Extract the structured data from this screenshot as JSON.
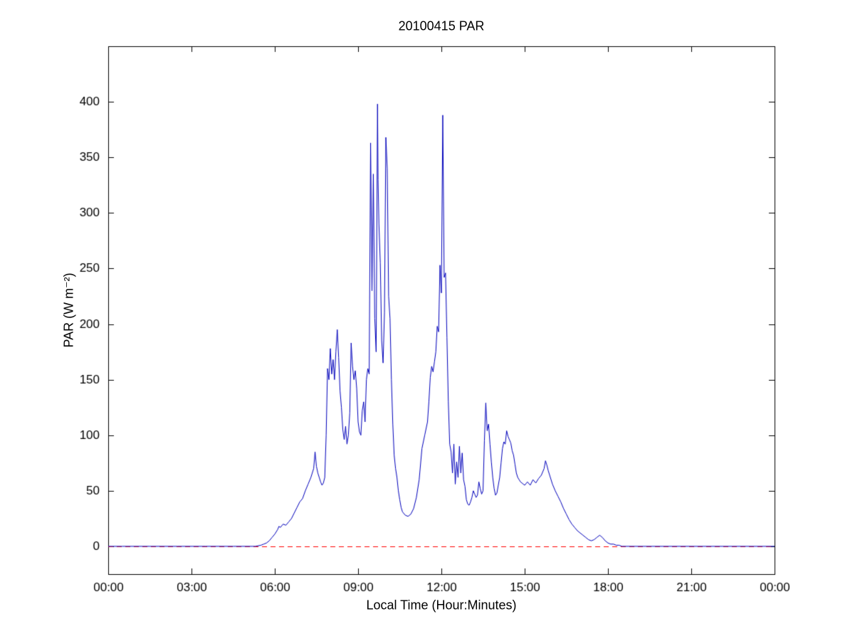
{
  "chart_data": {
    "type": "line",
    "title": "20100415 PAR",
    "xlabel": "Local Time (Hour:Minutes)",
    "ylabel": "PAR (W m⁻²)",
    "xlim": [
      0,
      24
    ],
    "ylim": [
      -25,
      450
    ],
    "xticks": [
      0,
      3,
      6,
      9,
      12,
      15,
      18,
      21,
      24
    ],
    "xtick_labels": [
      "00:00",
      "03:00",
      "06:00",
      "09:00",
      "12:00",
      "15:00",
      "18:00",
      "21:00",
      "00:00"
    ],
    "yticks": [
      0,
      50,
      100,
      150,
      200,
      250,
      300,
      350,
      400
    ],
    "ytick_labels": [
      "0",
      "50",
      "100",
      "150",
      "200",
      "250",
      "300",
      "350",
      "400"
    ],
    "grid": false,
    "legend_position": "none",
    "background_color": "#ffffff",
    "axis_color": "#000000",
    "series": [
      {
        "name": "PAR",
        "color": "#0000bb",
        "points": [
          [
            0.0,
            0
          ],
          [
            0.5,
            0
          ],
          [
            1.0,
            0
          ],
          [
            1.5,
            0
          ],
          [
            2.0,
            0
          ],
          [
            2.5,
            0
          ],
          [
            3.0,
            0
          ],
          [
            3.5,
            0
          ],
          [
            4.0,
            0
          ],
          [
            4.5,
            0
          ],
          [
            5.0,
            0
          ],
          [
            5.3,
            0
          ],
          [
            5.5,
            1
          ],
          [
            5.6,
            2
          ],
          [
            5.7,
            3
          ],
          [
            5.8,
            5
          ],
          [
            5.9,
            8
          ],
          [
            6.0,
            11
          ],
          [
            6.1,
            15
          ],
          [
            6.15,
            18
          ],
          [
            6.2,
            17
          ],
          [
            6.3,
            20
          ],
          [
            6.4,
            19
          ],
          [
            6.5,
            22
          ],
          [
            6.6,
            25
          ],
          [
            6.7,
            30
          ],
          [
            6.8,
            35
          ],
          [
            6.9,
            40
          ],
          [
            7.0,
            43
          ],
          [
            7.1,
            50
          ],
          [
            7.2,
            56
          ],
          [
            7.3,
            62
          ],
          [
            7.4,
            70
          ],
          [
            7.45,
            85
          ],
          [
            7.5,
            72
          ],
          [
            7.55,
            66
          ],
          [
            7.6,
            62
          ],
          [
            7.65,
            58
          ],
          [
            7.7,
            55
          ],
          [
            7.75,
            57
          ],
          [
            7.8,
            62
          ],
          [
            7.85,
            100
          ],
          [
            7.9,
            160
          ],
          [
            7.95,
            150
          ],
          [
            8.0,
            178
          ],
          [
            8.05,
            155
          ],
          [
            8.1,
            168
          ],
          [
            8.15,
            150
          ],
          [
            8.2,
            175
          ],
          [
            8.25,
            195
          ],
          [
            8.3,
            170
          ],
          [
            8.35,
            140
          ],
          [
            8.4,
            125
          ],
          [
            8.45,
            105
          ],
          [
            8.5,
            96
          ],
          [
            8.55,
            108
          ],
          [
            8.6,
            92
          ],
          [
            8.65,
            100
          ],
          [
            8.7,
            120
          ],
          [
            8.75,
            183
          ],
          [
            8.8,
            162
          ],
          [
            8.85,
            150
          ],
          [
            8.9,
            158
          ],
          [
            8.95,
            142
          ],
          [
            9.0,
            112
          ],
          [
            9.05,
            103
          ],
          [
            9.1,
            100
          ],
          [
            9.15,
            122
          ],
          [
            9.2,
            130
          ],
          [
            9.25,
            112
          ],
          [
            9.3,
            150
          ],
          [
            9.35,
            160
          ],
          [
            9.4,
            155
          ],
          [
            9.45,
            363
          ],
          [
            9.5,
            230
          ],
          [
            9.55,
            335
          ],
          [
            9.6,
            205
          ],
          [
            9.65,
            175
          ],
          [
            9.7,
            398
          ],
          [
            9.72,
            330
          ],
          [
            9.75,
            290
          ],
          [
            9.8,
            255
          ],
          [
            9.85,
            185
          ],
          [
            9.9,
            165
          ],
          [
            9.95,
            210
          ],
          [
            10.0,
            368
          ],
          [
            10.05,
            340
          ],
          [
            10.1,
            225
          ],
          [
            10.15,
            205
          ],
          [
            10.2,
            150
          ],
          [
            10.25,
            110
          ],
          [
            10.3,
            82
          ],
          [
            10.35,
            70
          ],
          [
            10.4,
            62
          ],
          [
            10.45,
            50
          ],
          [
            10.5,
            42
          ],
          [
            10.55,
            35
          ],
          [
            10.6,
            31
          ],
          [
            10.7,
            28
          ],
          [
            10.8,
            27
          ],
          [
            10.9,
            29
          ],
          [
            11.0,
            34
          ],
          [
            11.1,
            44
          ],
          [
            11.2,
            60
          ],
          [
            11.3,
            88
          ],
          [
            11.4,
            100
          ],
          [
            11.5,
            112
          ],
          [
            11.55,
            130
          ],
          [
            11.6,
            152
          ],
          [
            11.65,
            162
          ],
          [
            11.7,
            157
          ],
          [
            11.75,
            166
          ],
          [
            11.8,
            175
          ],
          [
            11.85,
            198
          ],
          [
            11.9,
            193
          ],
          [
            11.95,
            253
          ],
          [
            12.0,
            228
          ],
          [
            12.05,
            388
          ],
          [
            12.1,
            242
          ],
          [
            12.15,
            246
          ],
          [
            12.2,
            188
          ],
          [
            12.25,
            130
          ],
          [
            12.3,
            92
          ],
          [
            12.35,
            85
          ],
          [
            12.4,
            66
          ],
          [
            12.45,
            92
          ],
          [
            12.5,
            56
          ],
          [
            12.55,
            76
          ],
          [
            12.6,
            62
          ],
          [
            12.65,
            90
          ],
          [
            12.7,
            66
          ],
          [
            12.75,
            84
          ],
          [
            12.8,
            60
          ],
          [
            12.85,
            54
          ],
          [
            12.9,
            42
          ],
          [
            12.95,
            38
          ],
          [
            13.0,
            37
          ],
          [
            13.05,
            40
          ],
          [
            13.1,
            44
          ],
          [
            13.15,
            50
          ],
          [
            13.2,
            47
          ],
          [
            13.25,
            44
          ],
          [
            13.3,
            46
          ],
          [
            13.35,
            58
          ],
          [
            13.4,
            52
          ],
          [
            13.45,
            47
          ],
          [
            13.5,
            50
          ],
          [
            13.55,
            95
          ],
          [
            13.6,
            129
          ],
          [
            13.65,
            104
          ],
          [
            13.7,
            110
          ],
          [
            13.75,
            92
          ],
          [
            13.8,
            76
          ],
          [
            13.85,
            62
          ],
          [
            13.9,
            52
          ],
          [
            13.95,
            46
          ],
          [
            14.0,
            48
          ],
          [
            14.05,
            55
          ],
          [
            14.1,
            62
          ],
          [
            14.15,
            75
          ],
          [
            14.2,
            88
          ],
          [
            14.25,
            94
          ],
          [
            14.3,
            92
          ],
          [
            14.35,
            104
          ],
          [
            14.4,
            99
          ],
          [
            14.45,
            96
          ],
          [
            14.5,
            93
          ],
          [
            14.55,
            86
          ],
          [
            14.6,
            82
          ],
          [
            14.65,
            74
          ],
          [
            14.7,
            66
          ],
          [
            14.75,
            62
          ],
          [
            14.8,
            60
          ],
          [
            14.85,
            58
          ],
          [
            14.9,
            57
          ],
          [
            14.95,
            56
          ],
          [
            15.0,
            55
          ],
          [
            15.1,
            58
          ],
          [
            15.2,
            55
          ],
          [
            15.3,
            60
          ],
          [
            15.4,
            57
          ],
          [
            15.5,
            61
          ],
          [
            15.6,
            64
          ],
          [
            15.7,
            70
          ],
          [
            15.75,
            77
          ],
          [
            15.8,
            73
          ],
          [
            15.85,
            68
          ],
          [
            15.9,
            64
          ],
          [
            16.0,
            56
          ],
          [
            16.1,
            50
          ],
          [
            16.2,
            45
          ],
          [
            16.3,
            40
          ],
          [
            16.4,
            34
          ],
          [
            16.5,
            29
          ],
          [
            16.6,
            24
          ],
          [
            16.7,
            20
          ],
          [
            16.8,
            17
          ],
          [
            16.9,
            14
          ],
          [
            17.0,
            12
          ],
          [
            17.1,
            10
          ],
          [
            17.2,
            8
          ],
          [
            17.3,
            6
          ],
          [
            17.4,
            5
          ],
          [
            17.5,
            6
          ],
          [
            17.6,
            8
          ],
          [
            17.7,
            10
          ],
          [
            17.75,
            9
          ],
          [
            17.8,
            8
          ],
          [
            17.9,
            5
          ],
          [
            18.0,
            3
          ],
          [
            18.1,
            2
          ],
          [
            18.2,
            2
          ],
          [
            18.3,
            1
          ],
          [
            18.4,
            1
          ],
          [
            18.5,
            0
          ],
          [
            19.0,
            0
          ],
          [
            20.0,
            0
          ],
          [
            21.0,
            0
          ],
          [
            22.0,
            0
          ],
          [
            23.0,
            0
          ],
          [
            24.0,
            0
          ]
        ]
      }
    ],
    "reference_lines": [
      {
        "y": 0,
        "color": "#ff0000",
        "style": "dashed"
      }
    ]
  }
}
